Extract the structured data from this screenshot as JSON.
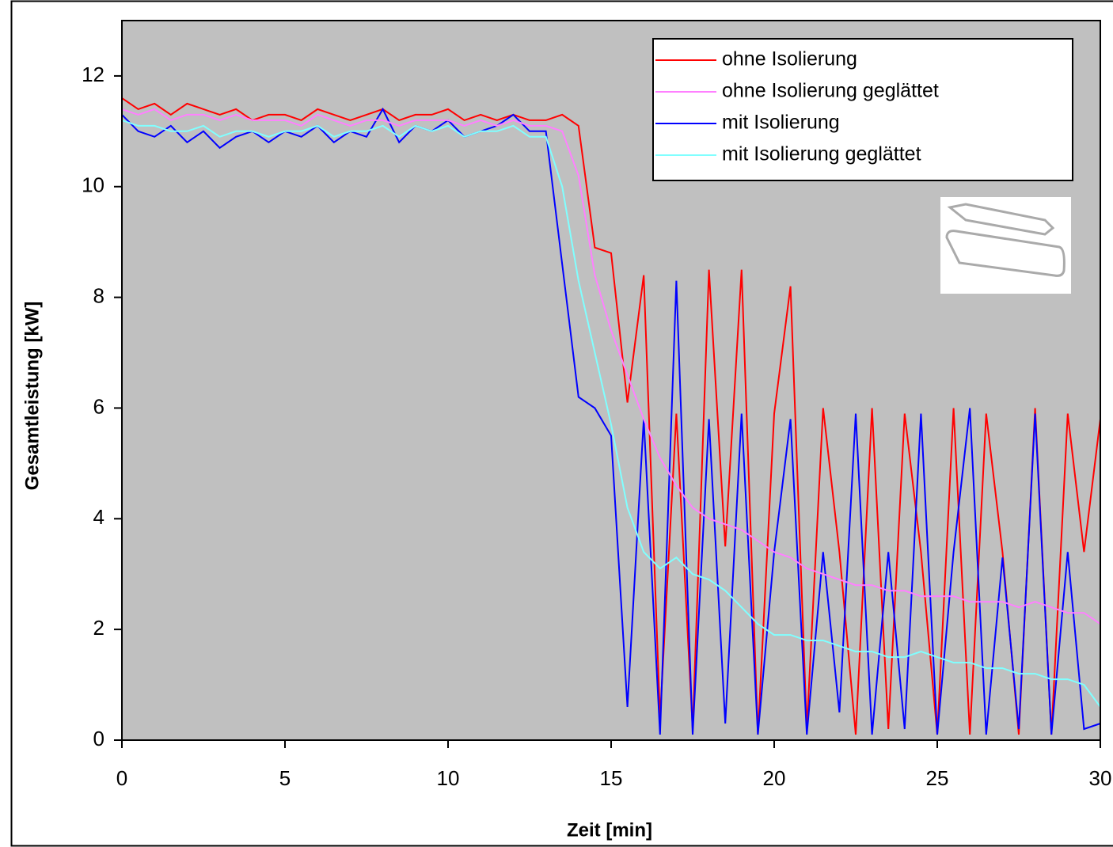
{
  "chart_data": {
    "type": "line",
    "xlabel": "Zeit [min]",
    "ylabel": "Gesamtleistung [kW]",
    "xlim": [
      0,
      30
    ],
    "ylim": [
      0,
      13
    ],
    "xticks": [
      0,
      5,
      10,
      15,
      20,
      25,
      30
    ],
    "yticks": [
      0,
      2,
      4,
      6,
      8,
      10,
      12
    ],
    "legend": "upper right",
    "x": [
      0,
      0.5,
      1,
      1.5,
      2,
      2.5,
      3,
      3.5,
      4,
      4.5,
      5,
      5.5,
      6,
      6.5,
      7,
      7.5,
      8,
      8.5,
      9,
      9.5,
      10,
      10.5,
      11,
      11.5,
      12,
      12.5,
      13,
      13.5,
      14,
      14.5,
      15,
      15.5,
      16,
      16.5,
      17,
      17.5,
      18,
      18.5,
      19,
      19.5,
      20,
      20.5,
      21,
      21.5,
      22,
      22.5,
      23,
      23.5,
      24,
      24.5,
      25,
      25.5,
      26,
      26.5,
      27,
      27.5,
      28,
      28.5,
      29,
      29.5,
      30
    ],
    "series": [
      {
        "name": "ohne Isolierung",
        "color": "#ff0000",
        "values": [
          11.6,
          11.4,
          11.5,
          11.3,
          11.5,
          11.4,
          11.3,
          11.4,
          11.2,
          11.3,
          11.3,
          11.2,
          11.4,
          11.3,
          11.2,
          11.3,
          11.4,
          11.2,
          11.3,
          11.3,
          11.4,
          11.2,
          11.3,
          11.2,
          11.3,
          11.2,
          11.2,
          11.3,
          11.1,
          8.9,
          8.8,
          6.1,
          8.4,
          0.4,
          5.9,
          0.2,
          8.5,
          3.5,
          8.5,
          0.1,
          5.9,
          8.2,
          0.2,
          6.0,
          3.4,
          0.1,
          6.0,
          0.2,
          5.9,
          3.4,
          0.1,
          6.0,
          0.1,
          5.9,
          3.4,
          0.1,
          6.0,
          0.1,
          5.9,
          3.4,
          5.8
        ]
      },
      {
        "name": "ohne Isolierung geglättet",
        "color": "#ff80ff",
        "values": [
          11.4,
          11.3,
          11.4,
          11.2,
          11.3,
          11.3,
          11.2,
          11.3,
          11.2,
          11.2,
          11.2,
          11.1,
          11.3,
          11.2,
          11.1,
          11.2,
          11.2,
          11.1,
          11.2,
          11.2,
          11.2,
          11.1,
          11.2,
          11.1,
          11.2,
          11.1,
          11.1,
          11.0,
          10.2,
          8.4,
          7.4,
          6.6,
          5.8,
          5.1,
          4.6,
          4.2,
          4.0,
          3.9,
          3.8,
          3.6,
          3.4,
          3.3,
          3.1,
          3.0,
          2.9,
          2.8,
          2.8,
          2.7,
          2.7,
          2.6,
          2.6,
          2.6,
          2.5,
          2.5,
          2.5,
          2.4,
          2.5,
          2.4,
          2.3,
          2.3,
          2.1
        ]
      },
      {
        "name": "mit Isolierung",
        "color": "#0000ff",
        "values": [
          11.3,
          11.0,
          10.9,
          11.1,
          10.8,
          11.0,
          10.7,
          10.9,
          11.0,
          10.8,
          11.0,
          10.9,
          11.1,
          10.8,
          11.0,
          10.9,
          11.4,
          10.8,
          11.1,
          11.0,
          11.2,
          10.9,
          11.0,
          11.1,
          11.3,
          11.0,
          11.0,
          8.6,
          6.2,
          6.0,
          5.5,
          0.6,
          5.8,
          0.1,
          8.3,
          0.1,
          5.8,
          0.3,
          5.9,
          0.1,
          3.4,
          5.8,
          0.1,
          3.4,
          0.5,
          5.9,
          0.1,
          3.4,
          0.2,
          5.9,
          0.1,
          3.4,
          6.0,
          0.1,
          3.3,
          0.2,
          5.9,
          0.1,
          3.4,
          0.2,
          0.3
        ]
      },
      {
        "name": "mit Isolierung geglättet",
        "color": "#80ffff",
        "values": [
          11.2,
          11.1,
          11.1,
          11.0,
          11.0,
          11.1,
          10.9,
          11.0,
          11.0,
          10.9,
          11.0,
          11.0,
          11.1,
          10.9,
          11.0,
          11.0,
          11.1,
          10.9,
          11.1,
          11.0,
          11.1,
          10.9,
          11.0,
          11.0,
          11.1,
          10.9,
          10.9,
          10.0,
          8.3,
          7.0,
          5.7,
          4.2,
          3.4,
          3.1,
          3.3,
          3.0,
          2.9,
          2.7,
          2.4,
          2.1,
          1.9,
          1.9,
          1.8,
          1.8,
          1.7,
          1.6,
          1.6,
          1.5,
          1.5,
          1.6,
          1.5,
          1.4,
          1.4,
          1.3,
          1.3,
          1.2,
          1.2,
          1.1,
          1.1,
          1.0,
          0.6
        ]
      }
    ]
  }
}
